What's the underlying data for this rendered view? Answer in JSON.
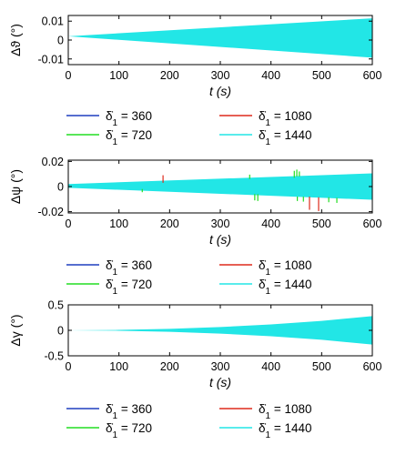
{
  "chart_data": [
    {
      "type": "line",
      "ylabel": "Δϑ (°)",
      "xlabel": "t (s)",
      "xlim": [
        0,
        600
      ],
      "ylim": [
        -0.013,
        0.013
      ],
      "xticks": [
        "0",
        "100",
        "200",
        "300",
        "400",
        "500",
        "600"
      ],
      "yticks": [
        "-0.01",
        "0",
        "0.01"
      ],
      "ytick_values": [
        -0.01,
        0,
        0.01
      ],
      "envelope": {
        "x": [
          0,
          600
        ],
        "upper": [
          0.002,
          0.0115
        ],
        "lower": [
          0.002,
          -0.0093
        ]
      },
      "spikes": [],
      "legend_placement": "below",
      "series": [
        {
          "name": "δ̇1 = 360",
          "label_sym": "δ̇",
          "label_sub": "1",
          "label_rest": " = 360",
          "color": "#1f3fbf"
        },
        {
          "name": "δ̇1 = 720",
          "label_sym": "δ̇",
          "label_sub": "1",
          "label_rest": " = 720",
          "color": "#22dd22"
        },
        {
          "name": "δ̇1 = 1080",
          "label_sym": "δ̇",
          "label_sub": "1",
          "label_rest": " = 1080",
          "color": "#dd2a1b"
        },
        {
          "name": "δ̇1 = 1440",
          "label_sym": "δ̇",
          "label_sub": "1",
          "label_rest": " = 1440",
          "color": "#22e6e6"
        }
      ]
    },
    {
      "type": "line",
      "ylabel": "Δψ (°)",
      "xlabel": "t (s)",
      "xlim": [
        0,
        600
      ],
      "ylim": [
        -0.021,
        0.021
      ],
      "xticks": [
        "0",
        "100",
        "200",
        "300",
        "400",
        "500",
        "600"
      ],
      "yticks": [
        "-0.02",
        "0",
        "0.02"
      ],
      "ytick_values": [
        -0.02,
        0,
        0.02
      ],
      "envelope": {
        "x": [
          0,
          600
        ],
        "upper": [
          0.002,
          0.0105
        ],
        "lower": [
          -0.001,
          -0.0105
        ]
      },
      "spikes": [
        {
          "x": 146,
          "y1": -0.002,
          "y2": -0.0045,
          "color": "#22dd22"
        },
        {
          "x": 187,
          "y1": 0.003,
          "y2": 0.009,
          "color": "#dd2a1b"
        },
        {
          "x": 358,
          "y1": 0.006,
          "y2": 0.0095,
          "color": "#22dd22"
        },
        {
          "x": 368,
          "y1": -0.006,
          "y2": -0.011,
          "color": "#22dd22"
        },
        {
          "x": 374,
          "y1": -0.006,
          "y2": -0.0115,
          "color": "#22dd22"
        },
        {
          "x": 446,
          "y1": 0.007,
          "y2": 0.0125,
          "color": "#22dd22"
        },
        {
          "x": 451,
          "y1": 0.008,
          "y2": 0.0135,
          "color": "#22dd22"
        },
        {
          "x": 452,
          "y1": -0.008,
          "y2": -0.0115,
          "color": "#22dd22"
        },
        {
          "x": 456,
          "y1": 0.008,
          "y2": 0.012,
          "color": "#22dd22"
        },
        {
          "x": 464,
          "y1": -0.008,
          "y2": -0.012,
          "color": "#22dd22"
        },
        {
          "x": 476,
          "y1": -0.008,
          "y2": -0.0185,
          "color": "#dd2a1b"
        },
        {
          "x": 494,
          "y1": -0.0085,
          "y2": -0.0195,
          "color": "#dd2a1b"
        },
        {
          "x": 514,
          "y1": -0.0085,
          "y2": -0.0125,
          "color": "#22dd22"
        },
        {
          "x": 530,
          "y1": -0.009,
          "y2": -0.013,
          "color": "#22dd22"
        }
      ],
      "legend_placement": "below",
      "series": [
        {
          "name": "δ̇1 = 360",
          "label_sym": "δ̇",
          "label_sub": "1",
          "label_rest": " = 360",
          "color": "#1f3fbf"
        },
        {
          "name": "δ̇1 = 720",
          "label_sym": "δ̇",
          "label_sub": "1",
          "label_rest": " = 720",
          "color": "#22dd22"
        },
        {
          "name": "δ̇1 = 1080",
          "label_sym": "δ̇",
          "label_sub": "1",
          "label_rest": " = 1080",
          "color": "#dd2a1b"
        },
        {
          "name": "δ̇1 = 1440",
          "label_sym": "δ̇",
          "label_sub": "1",
          "label_rest": " = 1440",
          "color": "#22e6e6"
        }
      ]
    },
    {
      "type": "line",
      "ylabel": "Δγ (°)",
      "xlabel": "t (s)",
      "xlim": [
        0,
        600
      ],
      "ylim": [
        -0.5,
        0.5
      ],
      "xticks": [
        "0",
        "100",
        "200",
        "300",
        "400",
        "500",
        "600"
      ],
      "yticks": [
        "-0.5",
        "0",
        "0.5"
      ],
      "ytick_values": [
        -0.5,
        0,
        0.5
      ],
      "envelope": {
        "x": [
          0,
          100,
          200,
          300,
          400,
          500,
          600
        ],
        "upper": [
          0.0,
          0.008,
          0.03,
          0.065,
          0.115,
          0.185,
          0.28
        ],
        "lower": [
          0.0,
          -0.008,
          -0.03,
          -0.065,
          -0.115,
          -0.185,
          -0.28
        ]
      },
      "spikes": [],
      "legend_placement": "below",
      "series": [
        {
          "name": "δ̇1 = 360",
          "label_sym": "δ̇",
          "label_sub": "1",
          "label_rest": " = 360",
          "color": "#1f3fbf"
        },
        {
          "name": "δ̇1 = 720",
          "label_sym": "δ̇",
          "label_sub": "1",
          "label_rest": " = 720",
          "color": "#22dd22"
        },
        {
          "name": "δ̇1 = 1080",
          "label_sym": "δ̇",
          "label_sub": "1",
          "label_rest": " = 1080",
          "color": "#dd2a1b"
        },
        {
          "name": "δ̇1 = 1440",
          "label_sym": "δ̇",
          "label_sub": "1",
          "label_rest": " = 1440",
          "color": "#22e6e6"
        }
      ]
    }
  ]
}
